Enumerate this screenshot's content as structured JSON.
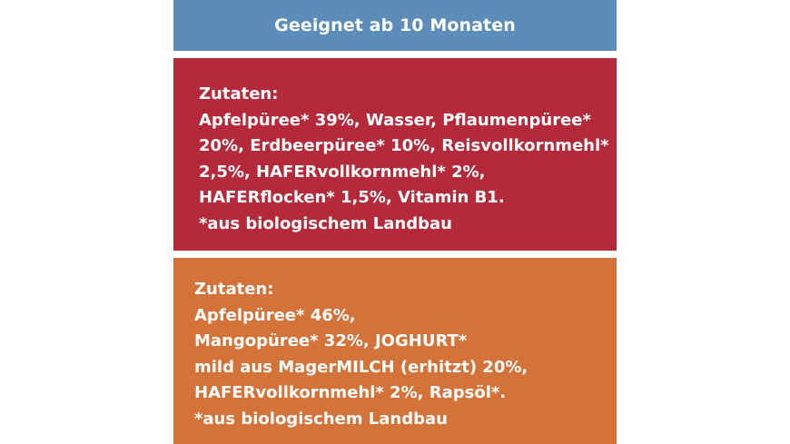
{
  "colors": {
    "header_bg": "#5b8db8",
    "red_bg": "#b42a3a",
    "orange_bg": "#d3733a",
    "text": "#ffffff"
  },
  "header": {
    "title": "Geeignet ab 10 Monaten"
  },
  "recipe_1": {
    "lines": [
      "Zutaten:",
      "Apfelpüree* 39%, Wasser, Pflaumenpüree*",
      "20%, Erdbeerpüree* 10%, Reisvollkornmehl*",
      "2,5%, HAFERvollkornmehl* 2%,",
      "HAFERflocken* 1,5%, Vitamin B1.",
      "*aus biologischem Landbau"
    ]
  },
  "recipe_2": {
    "lines": [
      "Zutaten:",
      "Apfelpüree* 46%,",
      "Mangopüree* 32%, JOGHURT*",
      "mild aus MagerMILCH (erhitzt) 20%,",
      "HAFERvollkornmehl* 2%, Rapsöl*.",
      "*aus biologischem Landbau"
    ]
  }
}
